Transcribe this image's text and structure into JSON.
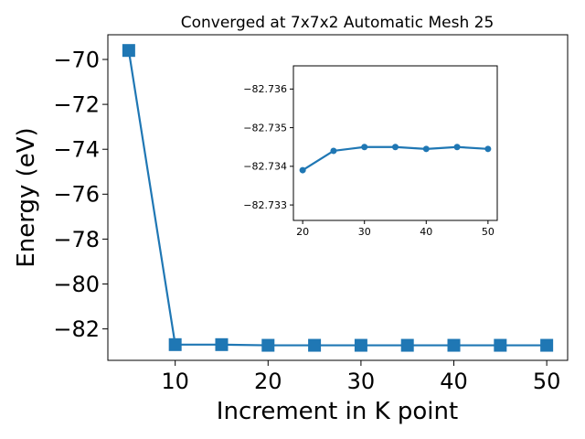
{
  "chart_data": [
    {
      "type": "line",
      "title": "Converged at 7x7x2 Automatic Mesh 25",
      "xlabel": "Increment in K point",
      "ylabel": "Energy (eV)",
      "x": [
        5,
        10,
        15,
        20,
        25,
        30,
        35,
        40,
        45,
        50
      ],
      "series": [
        {
          "values": [
            -69.6,
            -82.7,
            -82.7,
            -82.73,
            -82.73,
            -82.73,
            -82.73,
            -82.73,
            -82.73,
            -82.73
          ],
          "marker": "square",
          "color": "#1f77b4"
        }
      ],
      "xlim": [
        2.75,
        52.25
      ],
      "ylim": [
        -83.4,
        -68.9
      ],
      "xticks": [
        10,
        20,
        30,
        40,
        50
      ],
      "yticks": [
        -70,
        -72,
        -74,
        -76,
        -78,
        -80,
        -82
      ],
      "grid": false
    },
    {
      "type": "line",
      "title": "",
      "xlabel": "",
      "ylabel": "",
      "x": [
        20,
        25,
        30,
        35,
        40,
        45,
        50
      ],
      "series": [
        {
          "values": [
            -82.7339,
            -82.7344,
            -82.7345,
            -82.7345,
            -82.73445,
            -82.7345,
            -82.73445
          ],
          "marker": "circle",
          "color": "#1f77b4"
        }
      ],
      "xlim": [
        18.5,
        51.5
      ],
      "ylim": [
        -82.7326,
        -82.7366
      ],
      "xticks": [
        20,
        30,
        40,
        50
      ],
      "yticks": [
        -82.736,
        -82.735,
        -82.734,
        -82.733
      ],
      "grid": false
    }
  ]
}
